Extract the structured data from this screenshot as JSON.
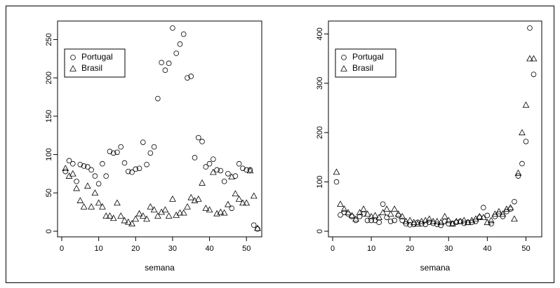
{
  "chart_data": [
    {
      "type": "scatter",
      "xlabel": "semana",
      "ylabel": "",
      "xlim": [
        0,
        53
      ],
      "ylim": [
        0,
        265
      ],
      "xticks": [
        0,
        10,
        20,
        30,
        40,
        50
      ],
      "yticks": [
        0,
        50,
        100,
        150,
        200,
        250
      ],
      "legend": {
        "position": "top-left",
        "entries": [
          "Portugal",
          "Brasil"
        ]
      },
      "series": [
        {
          "name": "Portugal",
          "marker": "circle",
          "x": [
            1,
            2,
            3,
            4,
            5,
            6,
            7,
            8,
            9,
            10,
            11,
            12,
            13,
            14,
            15,
            16,
            17,
            18,
            19,
            20,
            21,
            22,
            23,
            24,
            25,
            26,
            27,
            28,
            29,
            30,
            31,
            32,
            33,
            34,
            35,
            36,
            37,
            38,
            39,
            40,
            41,
            42,
            43,
            44,
            45,
            46,
            47,
            48,
            49,
            50,
            51,
            52,
            53
          ],
          "y": [
            78,
            92,
            88,
            65,
            87,
            85,
            84,
            80,
            72,
            62,
            88,
            72,
            104,
            102,
            103,
            110,
            89,
            78,
            77,
            81,
            82,
            116,
            87,
            102,
            110,
            173,
            220,
            210,
            219,
            265,
            232,
            244,
            257,
            200,
            202,
            96,
            122,
            117,
            84,
            88,
            94,
            80,
            79,
            65,
            75,
            30,
            72,
            88,
            82,
            80,
            80,
            8,
            3
          ]
        },
        {
          "name": "Brasil",
          "marker": "triangle",
          "x": [
            1,
            2,
            3,
            4,
            5,
            6,
            7,
            8,
            9,
            10,
            11,
            12,
            13,
            14,
            15,
            16,
            17,
            18,
            19,
            20,
            21,
            22,
            23,
            24,
            25,
            26,
            27,
            28,
            29,
            30,
            31,
            32,
            33,
            34,
            35,
            36,
            37,
            38,
            39,
            40,
            41,
            42,
            43,
            44,
            45,
            46,
            47,
            48,
            49,
            50,
            51,
            52,
            53
          ],
          "y": [
            82,
            72,
            75,
            56,
            40,
            32,
            59,
            32,
            50,
            37,
            32,
            20,
            20,
            17,
            37,
            20,
            14,
            12,
            10,
            16,
            23,
            20,
            16,
            32,
            28,
            20,
            25,
            28,
            20,
            42,
            21,
            24,
            24,
            32,
            44,
            40,
            42,
            63,
            30,
            28,
            77,
            23,
            25,
            24,
            35,
            71,
            49,
            42,
            37,
            37,
            79,
            46,
            4
          ]
        }
      ]
    },
    {
      "type": "scatter",
      "xlabel": "semana",
      "ylabel": "",
      "xlim": [
        0,
        53
      ],
      "ylim": [
        0,
        412
      ],
      "xticks": [
        0,
        10,
        20,
        30,
        40,
        50
      ],
      "yticks": [
        0,
        100,
        200,
        300,
        400
      ],
      "legend": {
        "position": "top-left",
        "entries": [
          "Portugal",
          "Brasil"
        ]
      },
      "series": [
        {
          "name": "Portugal",
          "marker": "circle",
          "x": [
            1,
            2,
            3,
            4,
            5,
            6,
            7,
            8,
            9,
            10,
            11,
            12,
            13,
            14,
            15,
            16,
            17,
            18,
            19,
            20,
            21,
            22,
            23,
            24,
            25,
            26,
            27,
            28,
            29,
            30,
            31,
            32,
            33,
            34,
            35,
            36,
            37,
            38,
            39,
            40,
            41,
            42,
            43,
            44,
            45,
            46,
            47,
            48,
            49,
            50,
            51,
            52
          ],
          "y": [
            100,
            33,
            38,
            35,
            30,
            22,
            30,
            35,
            22,
            22,
            22,
            18,
            55,
            28,
            20,
            22,
            32,
            22,
            15,
            13,
            14,
            18,
            15,
            14,
            18,
            16,
            14,
            12,
            20,
            15,
            16,
            18,
            20,
            16,
            18,
            18,
            20,
            28,
            48,
            32,
            15,
            30,
            35,
            30,
            40,
            45,
            60,
            112,
            137,
            182,
            412,
            318
          ]
        },
        {
          "name": "Brasil",
          "marker": "triangle",
          "x": [
            1,
            2,
            3,
            4,
            5,
            6,
            7,
            8,
            9,
            10,
            11,
            12,
            13,
            14,
            15,
            16,
            17,
            18,
            19,
            20,
            21,
            22,
            23,
            24,
            25,
            26,
            27,
            28,
            29,
            30,
            31,
            32,
            33,
            34,
            35,
            36,
            37,
            38,
            39,
            40,
            41,
            42,
            43,
            44,
            45,
            46,
            47,
            48,
            49,
            50,
            51,
            52
          ],
          "y": [
            120,
            55,
            45,
            38,
            32,
            25,
            38,
            45,
            35,
            30,
            32,
            28,
            38,
            45,
            35,
            45,
            35,
            30,
            20,
            22,
            18,
            15,
            20,
            22,
            25,
            20,
            20,
            18,
            30,
            22,
            15,
            20,
            20,
            22,
            18,
            22,
            25,
            30,
            28,
            18,
            22,
            35,
            40,
            35,
            45,
            48,
            25,
            118,
            200,
            256,
            350,
            350
          ]
        }
      ]
    }
  ]
}
